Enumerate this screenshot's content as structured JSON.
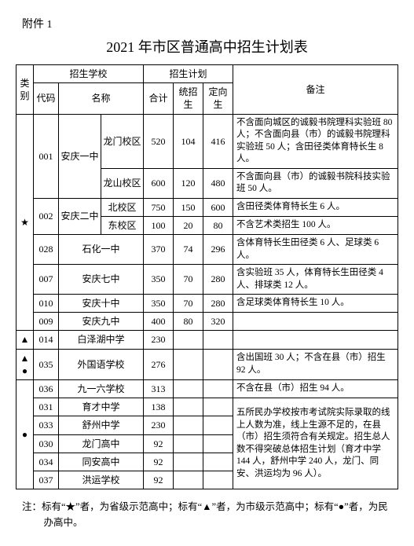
{
  "attachment": "附件 1",
  "title": "2021 年市区普通高中招生计划表",
  "header": {
    "cat": "类别",
    "school": "招生学校",
    "plan": "招生计划",
    "remark": "备注",
    "code": "代码",
    "name": "名称",
    "total": "合计",
    "unified": "统招生",
    "directed": "定向生"
  },
  "marks": {
    "star": "★",
    "tri": "▲",
    "circle": "●"
  },
  "schools": {
    "s001": {
      "code": "001",
      "name": "安庆一中",
      "r1": {
        "sub": "龙门校区",
        "total": "520",
        "u": "104",
        "d": "416",
        "rem": "不含面向城区的诚毅书院理科实验班 80 人；不含面向县（市）的诚毅书院理科实验班 50 人；含田径类体育特长生 8 人。"
      },
      "r2": {
        "sub": "龙山校区",
        "total": "600",
        "u": "120",
        "d": "480",
        "rem": "不含面向县（市）的诚毅书院科技实验班 50 人。"
      }
    },
    "s002": {
      "code": "002",
      "name": "安庆二中",
      "r1": {
        "sub": "北校区",
        "total": "750",
        "u": "150",
        "d": "600",
        "rem": "含田径类体育特长生 6 人。"
      },
      "r2": {
        "sub": "东校区",
        "total": "100",
        "u": "20",
        "d": "80",
        "rem": "不含艺术类招生 100 人。"
      }
    },
    "s028": {
      "code": "028",
      "name": "石化一中",
      "total": "370",
      "u": "74",
      "d": "296",
      "rem": "含体育特长生田径类 6 人、足球类 6 人。"
    },
    "s007": {
      "code": "007",
      "name": "安庆七中",
      "total": "350",
      "u": "70",
      "d": "280",
      "rem": "含实验班 35 人，体育特长生田径类 4 人、排球类 12 人。"
    },
    "s010": {
      "code": "010",
      "name": "安庆十中",
      "total": "350",
      "u": "70",
      "d": "280",
      "rem": "含足球类体育特长生 10 人。"
    },
    "s009": {
      "code": "009",
      "name": "安庆九中",
      "total": "400",
      "u": "80",
      "d": "320",
      "rem": ""
    },
    "s014": {
      "code": "014",
      "name": "白泽湖中学",
      "total": "230",
      "rem": ""
    },
    "s035": {
      "code": "035",
      "name": "外国语学校",
      "total": "276",
      "rem": "含出国班 30 人；不含在县（市）招生 92 人。"
    },
    "s036": {
      "code": "036",
      "name": "九一六学校",
      "total": "313",
      "rem": "不含在县（市）招生 94 人。"
    },
    "s031": {
      "code": "031",
      "name": "育才中学",
      "total": "138"
    },
    "s033": {
      "code": "033",
      "name": "舒州中学",
      "total": "230"
    },
    "s030": {
      "code": "030",
      "name": "龙门高中",
      "total": "92"
    },
    "s034": {
      "code": "034",
      "name": "同安高中",
      "total": "92"
    },
    "s037": {
      "code": "037",
      "name": "洪运学校",
      "total": "92"
    },
    "groupRemark": "五所民办学校按市考试院实际录取的线上人数为准，线上生源不足的，在县（市）招生须符合有关规定。招生总人数不得突破总体招生计划（育才中学 144 人，舒州中学 240 人，龙门、同安、洪运均为 96 人）。"
  },
  "footnote": "注：标有“★”者，为省级示范高中；标有“▲”者，为市级示范高中；标有“●”者，为民办高中。"
}
